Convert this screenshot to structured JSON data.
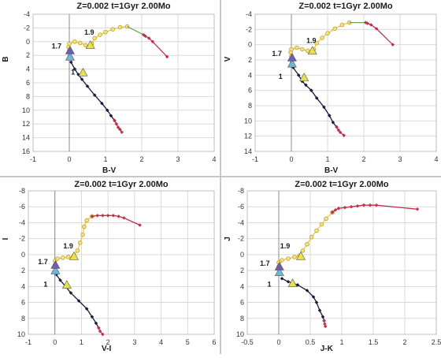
{
  "chart_data": [
    {
      "type": "scatter",
      "title": "Z=0.002  t=1Gyr  2.00Mo",
      "xlabel": "B-V",
      "ylabel": "B",
      "xlim": [
        -1,
        4
      ],
      "ylim": [
        16,
        -4
      ],
      "y_inverted": true,
      "grid": true,
      "xticks": [
        "-1",
        "0",
        "1",
        "2",
        "3",
        "4"
      ],
      "yticks": [
        "-4",
        "-2",
        "0",
        "2",
        "4",
        "6",
        "8",
        "10",
        "12",
        "14",
        "16"
      ],
      "annotations": [
        {
          "text": "1.9",
          "x": 0.55,
          "y": -1.0
        },
        {
          "text": "1.7",
          "x": -0.35,
          "y": 1.0
        },
        {
          "text": "1",
          "x": 0.1,
          "y": 4.8
        }
      ],
      "series": [
        {
          "color": "#1a1a3a",
          "values": [
            [
              0.05,
              3.0
            ],
            [
              0.15,
              4.0
            ],
            [
              0.25,
              4.8
            ],
            [
              0.35,
              5.5
            ],
            [
              0.5,
              6.5
            ],
            [
              0.7,
              7.8
            ],
            [
              0.9,
              9.0
            ],
            [
              1.05,
              10.0
            ],
            [
              1.15,
              10.8
            ],
            [
              1.25,
              11.5
            ]
          ]
        },
        {
          "color": "#c0304a",
          "values": [
            [
              1.25,
              11.5
            ],
            [
              1.3,
              12.0
            ],
            [
              1.35,
              12.5
            ],
            [
              1.4,
              12.8
            ],
            [
              1.45,
              13.2
            ]
          ]
        },
        {
          "color": "#3f8fbf",
          "values": [
            [
              0.0,
              1.5
            ],
            [
              0.0,
              2.0
            ],
            [
              0.02,
              2.5
            ]
          ]
        },
        {
          "color": "#e8c94a",
          "values": [
            [
              0.0,
              1.3
            ],
            [
              -0.02,
              0.8
            ],
            [
              0.0,
              0.3
            ],
            [
              0.15,
              0.0
            ],
            [
              0.3,
              0.2
            ],
            [
              0.45,
              0.5
            ],
            [
              0.55,
              0.7
            ],
            [
              0.62,
              0.3
            ],
            [
              0.7,
              -0.5
            ],
            [
              0.85,
              -1.0
            ],
            [
              1.0,
              -1.4
            ],
            [
              1.2,
              -1.8
            ],
            [
              1.4,
              -2.1
            ],
            [
              1.6,
              -2.2
            ]
          ]
        },
        {
          "color": "#6aa84f",
          "values": [
            [
              1.6,
              -2.2
            ],
            [
              2.05,
              -1.0
            ]
          ]
        },
        {
          "color": "#c0304a",
          "values": [
            [
              2.05,
              -1.0
            ],
            [
              2.1,
              -0.8
            ],
            [
              2.2,
              -0.5
            ],
            [
              2.3,
              0.0
            ],
            [
              2.7,
              2.2
            ]
          ]
        }
      ],
      "markers": [
        {
          "shape": "triangle",
          "color": "#e8e050",
          "x": 0.38,
          "y": 4.5,
          "label": "1"
        },
        {
          "shape": "triangle",
          "color": "#6fb7d6",
          "x": 0.02,
          "y": 2.2
        },
        {
          "shape": "triangle",
          "color": "#6a5fb0",
          "x": 0.02,
          "y": 1.3
        },
        {
          "shape": "triangle",
          "color": "#e8e050",
          "x": 0.58,
          "y": 0.5
        }
      ]
    },
    {
      "type": "scatter",
      "title": "Z=0.002  t=1Gyr  2.00Mo",
      "xlabel": "B-V",
      "ylabel": "V",
      "xlim": [
        -1,
        4
      ],
      "ylim": [
        14,
        -4
      ],
      "y_inverted": true,
      "grid": true,
      "xticks": [
        "-1",
        "0",
        "1",
        "2",
        "3",
        "4"
      ],
      "yticks": [
        "-4",
        "-2",
        "0",
        "2",
        "4",
        "6",
        "8",
        "10",
        "12",
        "14"
      ],
      "annotations": [
        {
          "text": "1.9",
          "x": 0.55,
          "y": -0.2
        },
        {
          "text": "1.7",
          "x": -0.4,
          "y": 1.5
        },
        {
          "text": "1",
          "x": -0.3,
          "y": 4.5
        }
      ],
      "series": [
        {
          "color": "#1a1a3a",
          "values": [
            [
              0.05,
              3.0
            ],
            [
              0.2,
              4.0
            ],
            [
              0.3,
              4.8
            ],
            [
              0.4,
              5.3
            ],
            [
              0.55,
              6.0
            ],
            [
              0.7,
              7.0
            ],
            [
              0.9,
              8.2
            ],
            [
              1.05,
              9.3
            ],
            [
              1.15,
              10.2
            ],
            [
              1.25,
              10.8
            ]
          ]
        },
        {
          "color": "#c0304a",
          "values": [
            [
              1.25,
              10.8
            ],
            [
              1.3,
              11.2
            ],
            [
              1.35,
              11.5
            ],
            [
              1.45,
              11.9
            ]
          ]
        },
        {
          "color": "#3f8fbf",
          "values": [
            [
              0.0,
              1.8
            ],
            [
              0.0,
              2.3
            ],
            [
              0.02,
              2.8
            ]
          ]
        },
        {
          "color": "#e8c94a",
          "values": [
            [
              0.0,
              1.5
            ],
            [
              -0.02,
              1.0
            ],
            [
              0.0,
              0.6
            ],
            [
              0.15,
              0.4
            ],
            [
              0.3,
              0.6
            ],
            [
              0.45,
              0.8
            ],
            [
              0.55,
              1.0
            ],
            [
              0.62,
              0.6
            ],
            [
              0.7,
              -0.2
            ],
            [
              0.85,
              -0.9
            ],
            [
              1.0,
              -1.5
            ],
            [
              1.2,
              -2.1
            ],
            [
              1.4,
              -2.6
            ],
            [
              1.6,
              -2.9
            ]
          ]
        },
        {
          "color": "#6aa84f",
          "values": [
            [
              1.6,
              -2.9
            ],
            [
              2.05,
              -2.9
            ]
          ]
        },
        {
          "color": "#c0304a",
          "values": [
            [
              2.05,
              -2.9
            ],
            [
              2.1,
              -2.8
            ],
            [
              2.2,
              -2.6
            ],
            [
              2.35,
              -2.1
            ],
            [
              2.8,
              0.0
            ]
          ]
        }
      ],
      "markers": [
        {
          "shape": "triangle",
          "color": "#e8e050",
          "x": 0.35,
          "y": 4.3,
          "label": "1"
        },
        {
          "shape": "triangle",
          "color": "#6fb7d6",
          "x": 0.02,
          "y": 2.5
        },
        {
          "shape": "triangle",
          "color": "#6a5fb0",
          "x": 0.02,
          "y": 1.7
        },
        {
          "shape": "triangle",
          "color": "#e8e050",
          "x": 0.58,
          "y": 0.8
        }
      ]
    },
    {
      "type": "scatter",
      "title": "Z=0.002  t=1Gyr  2.00Mo",
      "xlabel": "V-I",
      "ylabel": "I",
      "xlim": [
        -1,
        6
      ],
      "ylim": [
        10,
        -8
      ],
      "y_inverted": true,
      "grid": true,
      "xticks": [
        "-1",
        "0",
        "1",
        "2",
        "3",
        "4",
        "5",
        "6"
      ],
      "yticks": [
        "-8",
        "-6",
        "-4",
        "-2",
        "0",
        "2",
        "4",
        "6",
        "8",
        "10"
      ],
      "annotations": [
        {
          "text": "1.9",
          "x": 0.5,
          "y": -0.8
        },
        {
          "text": "1.7",
          "x": -0.45,
          "y": 1.2
        },
        {
          "text": "1",
          "x": -0.35,
          "y": 4.0
        }
      ],
      "series": [
        {
          "color": "#1a1a3a",
          "values": [
            [
              0.05,
              2.5
            ],
            [
              0.2,
              3.2
            ],
            [
              0.4,
              4.0
            ],
            [
              0.6,
              4.8
            ],
            [
              0.9,
              5.8
            ],
            [
              1.2,
              6.8
            ],
            [
              1.4,
              7.8
            ],
            [
              1.55,
              8.6
            ],
            [
              1.65,
              9.2
            ]
          ]
        },
        {
          "color": "#c0304a",
          "values": [
            [
              1.65,
              9.2
            ],
            [
              1.7,
              9.6
            ],
            [
              1.8,
              10.0
            ]
          ]
        },
        {
          "color": "#3f8fbf",
          "values": [
            [
              0.0,
              1.6
            ],
            [
              0.0,
              2.0
            ],
            [
              0.02,
              2.4
            ]
          ]
        },
        {
          "color": "#e8c94a",
          "values": [
            [
              0.0,
              1.3
            ],
            [
              0.0,
              0.8
            ],
            [
              0.1,
              0.5
            ],
            [
              0.3,
              0.4
            ],
            [
              0.5,
              0.3
            ],
            [
              0.7,
              0.2
            ],
            [
              0.85,
              -0.5
            ],
            [
              0.95,
              -1.5
            ],
            [
              1.05,
              -2.5
            ],
            [
              1.1,
              -3.5
            ],
            [
              1.2,
              -4.3
            ],
            [
              1.4,
              -4.8
            ]
          ]
        },
        {
          "color": "#c0304a",
          "values": [
            [
              1.4,
              -4.8
            ],
            [
              1.6,
              -4.9
            ],
            [
              1.8,
              -4.9
            ],
            [
              2.0,
              -4.9
            ],
            [
              2.2,
              -4.9
            ],
            [
              2.4,
              -4.8
            ],
            [
              2.6,
              -4.6
            ],
            [
              3.2,
              -3.7
            ]
          ]
        }
      ],
      "markers": [
        {
          "shape": "triangle",
          "color": "#e8e050",
          "x": 0.45,
          "y": 3.8,
          "label": "1"
        },
        {
          "shape": "triangle",
          "color": "#6fb7d6",
          "x": 0.02,
          "y": 2.0
        },
        {
          "shape": "triangle",
          "color": "#6a5fb0",
          "x": 0.02,
          "y": 1.3
        },
        {
          "shape": "triangle",
          "color": "#e8e050",
          "x": 0.72,
          "y": 0.2
        }
      ]
    },
    {
      "type": "scatter",
      "title": "Z=0.002  t=1Gyr  2.00Mo",
      "xlabel": "J-K",
      "ylabel": "J",
      "xlim": [
        -0.5,
        2.5
      ],
      "ylim": [
        10,
        -8
      ],
      "y_inverted": true,
      "grid": true,
      "xticks": [
        "-0.5",
        "0",
        "0.5",
        "1",
        "1.5",
        "2",
        "2.5"
      ],
      "yticks": [
        "-8",
        "-6",
        "-4",
        "-2",
        "0",
        "2",
        "4",
        "6",
        "8",
        "10"
      ],
      "annotations": [
        {
          "text": "1.9",
          "x": 0.1,
          "y": -0.8
        },
        {
          "text": "1.7",
          "x": -0.22,
          "y": 1.4
        },
        {
          "text": "1",
          "x": -0.15,
          "y": 4.0
        }
      ],
      "series": [
        {
          "color": "#1a1a3a",
          "values": [
            [
              0.05,
              3.0
            ],
            [
              0.15,
              3.4
            ],
            [
              0.3,
              3.8
            ],
            [
              0.45,
              4.5
            ],
            [
              0.55,
              5.3
            ],
            [
              0.6,
              6.0
            ],
            [
              0.65,
              7.0
            ],
            [
              0.7,
              7.8
            ],
            [
              0.72,
              8.3
            ]
          ]
        },
        {
          "color": "#c0304a",
          "values": [
            [
              0.72,
              8.3
            ],
            [
              0.73,
              8.7
            ],
            [
              0.74,
              9.0
            ]
          ]
        },
        {
          "color": "#3f8fbf",
          "values": [
            [
              0.0,
              1.8
            ],
            [
              0.0,
              2.2
            ],
            [
              0.01,
              2.5
            ]
          ]
        },
        {
          "color": "#e8c94a",
          "values": [
            [
              0.0,
              1.5
            ],
            [
              0.0,
              1.0
            ],
            [
              0.05,
              0.7
            ],
            [
              0.15,
              0.5
            ],
            [
              0.25,
              0.3
            ],
            [
              0.33,
              0.1
            ],
            [
              0.38,
              -0.5
            ],
            [
              0.45,
              -1.3
            ],
            [
              0.52,
              -2.2
            ],
            [
              0.6,
              -3.0
            ],
            [
              0.68,
              -3.8
            ],
            [
              0.75,
              -4.5
            ],
            [
              0.85,
              -5.3
            ]
          ]
        },
        {
          "color": "#c0304a",
          "values": [
            [
              0.85,
              -5.3
            ],
            [
              0.9,
              -5.6
            ],
            [
              0.95,
              -5.8
            ],
            [
              1.05,
              -5.9
            ],
            [
              1.15,
              -6.0
            ],
            [
              1.25,
              -6.1
            ],
            [
              1.35,
              -6.2
            ],
            [
              1.45,
              -6.2
            ],
            [
              1.55,
              -6.2
            ],
            [
              2.2,
              -5.7
            ]
          ]
        }
      ],
      "markers": [
        {
          "shape": "triangle",
          "color": "#e8e050",
          "x": 0.22,
          "y": 3.6,
          "label": "1"
        },
        {
          "shape": "triangle",
          "color": "#6fb7d6",
          "x": 0.01,
          "y": 2.2
        },
        {
          "shape": "triangle",
          "color": "#6a5fb0",
          "x": 0.01,
          "y": 1.5
        },
        {
          "shape": "triangle",
          "color": "#e8e050",
          "x": 0.35,
          "y": 0.2
        }
      ]
    }
  ]
}
